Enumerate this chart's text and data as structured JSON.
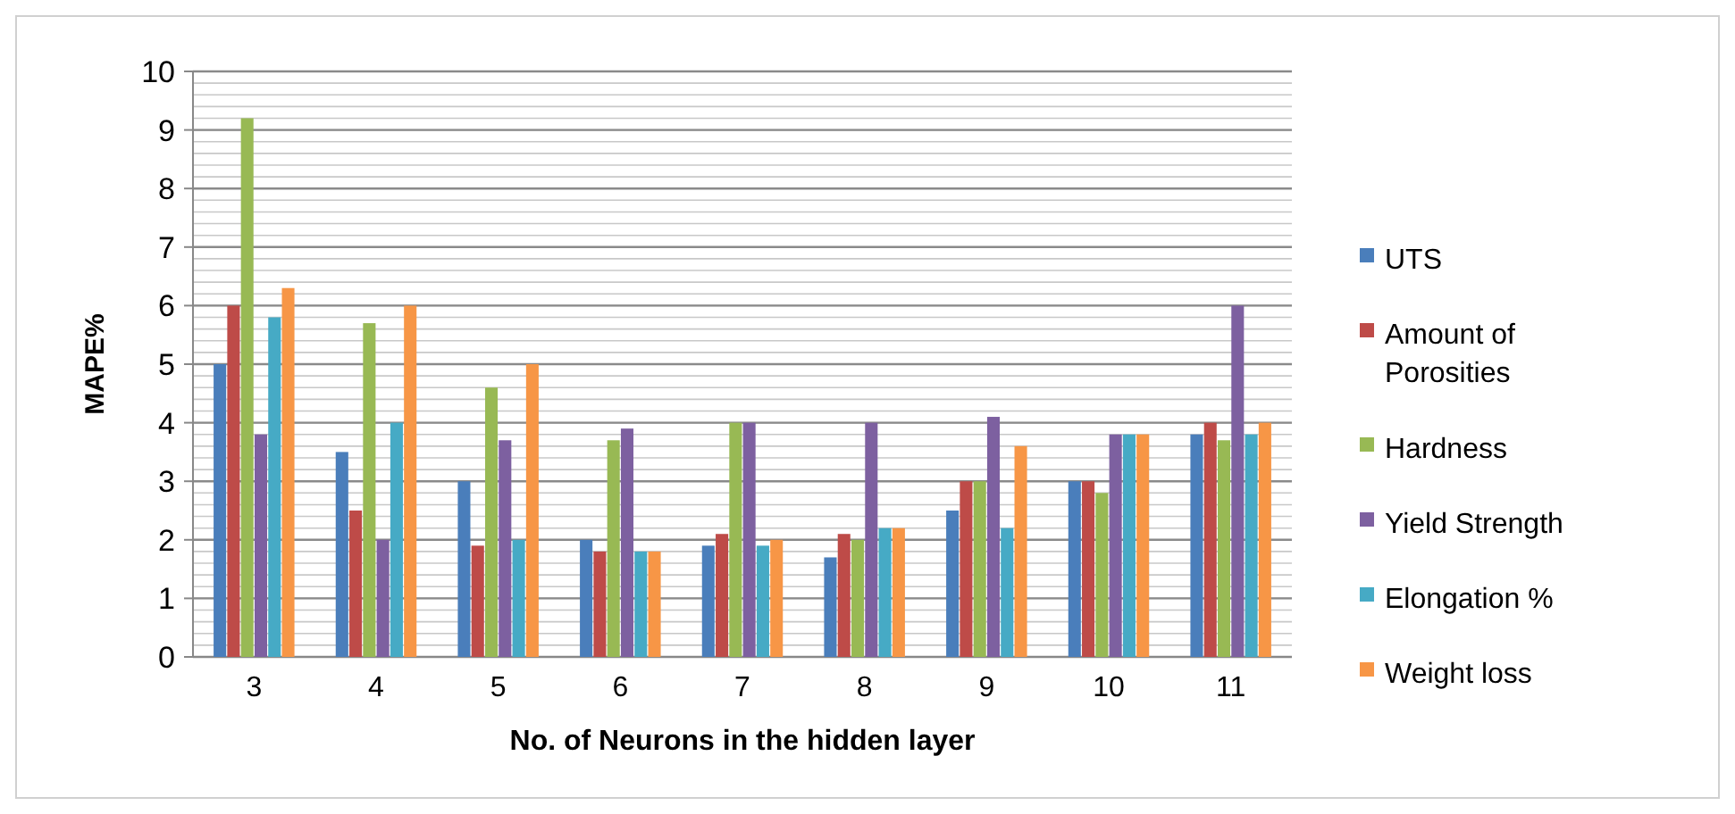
{
  "chart_data": {
    "type": "bar",
    "xlabel": "No. of Neurons in the hidden layer",
    "ylabel": "MAPE%",
    "categories": [
      "3",
      "4",
      "5",
      "6",
      "7",
      "8",
      "9",
      "10",
      "11"
    ],
    "series": [
      {
        "name": "UTS",
        "color": "#4a7ebb",
        "values": [
          5,
          3.5,
          3,
          2,
          1.9,
          1.7,
          2.5,
          3,
          3.8
        ]
      },
      {
        "name": "Amount of Porosities",
        "color": "#be4b48",
        "values": [
          6,
          2.5,
          1.9,
          1.8,
          2.1,
          2.1,
          3,
          3,
          4
        ]
      },
      {
        "name": "Hardness",
        "color": "#98b954",
        "values": [
          9.2,
          5.7,
          4.6,
          3.7,
          4,
          2,
          3,
          2.8,
          3.7
        ]
      },
      {
        "name": "Yield Strength",
        "color": "#7d60a0",
        "values": [
          3.8,
          2,
          3.7,
          3.9,
          4,
          4,
          4.1,
          3.8,
          6
        ]
      },
      {
        "name": "Elongation %",
        "color": "#46aac5",
        "values": [
          5.8,
          4,
          2,
          1.8,
          1.9,
          2.2,
          2.2,
          3.8,
          3.8
        ]
      },
      {
        "name": "Weight loss",
        "color": "#f79646",
        "values": [
          6.3,
          6,
          5,
          1.8,
          2,
          2.2,
          3.6,
          3.8,
          4
        ]
      }
    ],
    "ylim": [
      0,
      10
    ],
    "yticks": [
      0,
      1,
      2,
      3,
      4,
      5,
      6,
      7,
      8,
      9,
      10
    ],
    "grid": "y",
    "legend": "right"
  }
}
